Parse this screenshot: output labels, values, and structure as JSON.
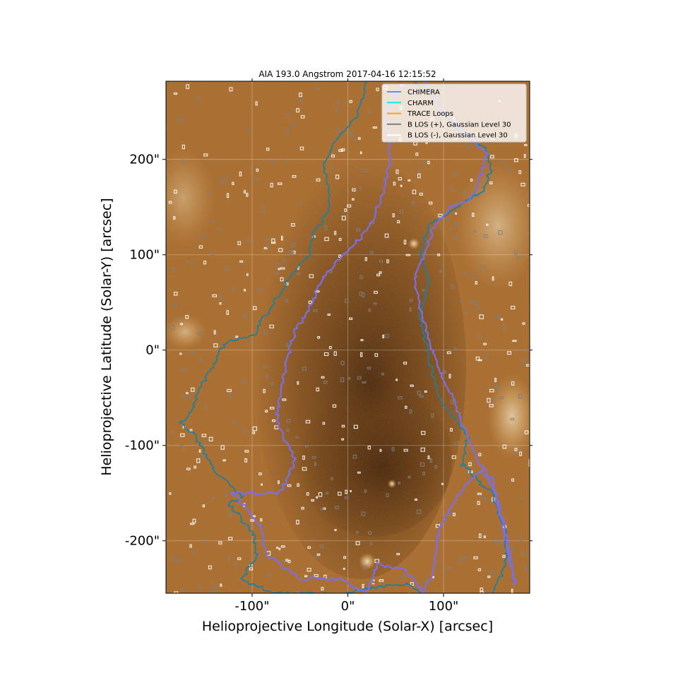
{
  "chart_data": {
    "type": "heatmap",
    "title": "AIA 193.0 Angstrom 2017-04-16 12:15:52",
    "xlabel": "Helioprojective Longitude (Solar-X) [arcsec]",
    "ylabel": "Helioprojective Latitude (Solar-Y) [arcsec]",
    "x_unit": "arcsec",
    "y_unit": "arcsec",
    "xlim": [
      -190,
      190
    ],
    "ylim": [
      -255,
      282
    ],
    "xticks": [
      -100,
      0,
      100
    ],
    "yticks": [
      -200,
      -100,
      0,
      100,
      200
    ],
    "xtick_labels": [
      "-100\"",
      "0\"",
      "100\""
    ],
    "ytick_labels": [
      "-200\"",
      "-100\"",
      "0\"",
      "100\"",
      "200\""
    ],
    "grid": true,
    "legend_position": "top-right",
    "legend": [
      {
        "name": "CHIMERA",
        "color": "#6a8de6"
      },
      {
        "name": "CHARM",
        "color": "#19e6e6"
      },
      {
        "name": "TRACE Loops",
        "color": "#f5a022"
      },
      {
        "name": "B LOS (+), Gaussian Level 30",
        "color": "#7f7f7f"
      },
      {
        "name": "B LOS (-), Gaussian Level 30",
        "color": "#ffffff"
      }
    ],
    "contours": {
      "chimera": [
        [
          60,
          282
        ],
        [
          40,
          250
        ],
        [
          45,
          205
        ],
        [
          35,
          160
        ],
        [
          20,
          125
        ],
        [
          -5,
          100
        ],
        [
          -30,
          70
        ],
        [
          -40,
          45
        ],
        [
          -55,
          20
        ],
        [
          -62,
          -5
        ],
        [
          -70,
          -40
        ],
        [
          -75,
          -75
        ],
        [
          -55,
          -115
        ],
        [
          -70,
          -150
        ],
        [
          -120,
          -150
        ],
        [
          -90,
          -185
        ],
        [
          -85,
          -215
        ],
        [
          -50,
          -240
        ],
        [
          -10,
          -240
        ],
        [
          20,
          -255
        ],
        [
          30,
          -225
        ],
        [
          60,
          -230
        ],
        [
          80,
          -255
        ],
        [
          90,
          -225
        ],
        [
          95,
          -190
        ],
        [
          110,
          -160
        ],
        [
          125,
          -140
        ],
        [
          140,
          -125
        ],
        [
          155,
          -150
        ],
        [
          165,
          -200
        ],
        [
          175,
          -245
        ],
        [
          165,
          -195
        ],
        [
          150,
          -135
        ],
        [
          135,
          -115
        ],
        [
          120,
          -80
        ],
        [
          110,
          -50
        ],
        [
          95,
          -20
        ],
        [
          85,
          10
        ],
        [
          75,
          45
        ],
        [
          70,
          75
        ],
        [
          80,
          100
        ],
        [
          90,
          130
        ],
        [
          105,
          148
        ],
        [
          130,
          160
        ],
        [
          140,
          185
        ],
        [
          145,
          205
        ],
        [
          120,
          230
        ],
        [
          95,
          255
        ],
        [
          80,
          282
        ]
      ],
      "charm": [
        [
          20,
          282
        ],
        [
          10,
          245
        ],
        [
          -10,
          225
        ],
        [
          -25,
          195
        ],
        [
          -20,
          160
        ],
        [
          -20,
          145
        ],
        [
          -35,
          125
        ],
        [
          -40,
          100
        ],
        [
          -55,
          85
        ],
        [
          -70,
          60
        ],
        [
          -80,
          45
        ],
        [
          -95,
          25
        ],
        [
          -95,
          15
        ],
        [
          -125,
          10
        ],
        [
          -135,
          -5
        ],
        [
          -155,
          -40
        ],
        [
          -165,
          -70
        ],
        [
          -175,
          -75
        ],
        [
          -160,
          -90
        ],
        [
          -140,
          -125
        ],
        [
          -110,
          -155
        ],
        [
          -125,
          -160
        ],
        [
          -100,
          -190
        ],
        [
          -95,
          -215
        ],
        [
          -110,
          -240
        ],
        [
          -80,
          -255
        ],
        [
          0,
          -255
        ],
        [
          20,
          -250
        ],
        [
          60,
          -245
        ],
        [
          85,
          -260
        ],
        [
          150,
          -260
        ],
        [
          165,
          -225
        ],
        [
          165,
          -190
        ],
        [
          150,
          -150
        ],
        [
          120,
          -120
        ],
        [
          125,
          -90
        ],
        [
          95,
          -50
        ],
        [
          85,
          -10
        ],
        [
          75,
          35
        ],
        [
          85,
          70
        ],
        [
          75,
          100
        ],
        [
          85,
          130
        ],
        [
          120,
          155
        ],
        [
          140,
          165
        ],
        [
          150,
          190
        ],
        [
          145,
          210
        ],
        [
          115,
          230
        ],
        [
          90,
          265
        ],
        [
          70,
          282
        ]
      ]
    }
  }
}
